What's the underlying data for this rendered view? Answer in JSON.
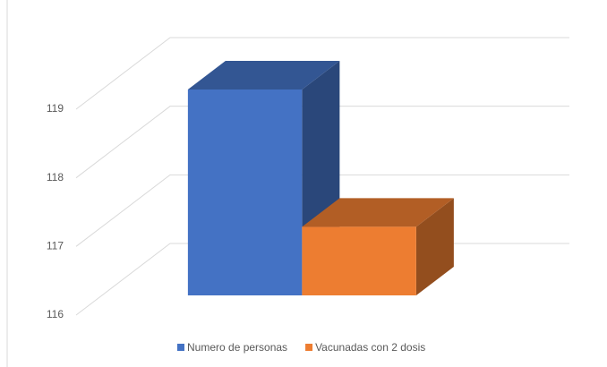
{
  "chart_data": {
    "type": "bar3d",
    "categories": [
      null
    ],
    "series": [
      {
        "name": "Numero de personas",
        "color": "#4472c4",
        "values": [
          119
        ]
      },
      {
        "name": "Vacunadas con 2 dosis",
        "color": "#ed7d31",
        "values": [
          117
        ]
      }
    ],
    "ylim": [
      116,
      119
    ],
    "yticks": [
      116,
      117,
      118,
      119
    ],
    "grid": true,
    "legend": "bottom"
  }
}
